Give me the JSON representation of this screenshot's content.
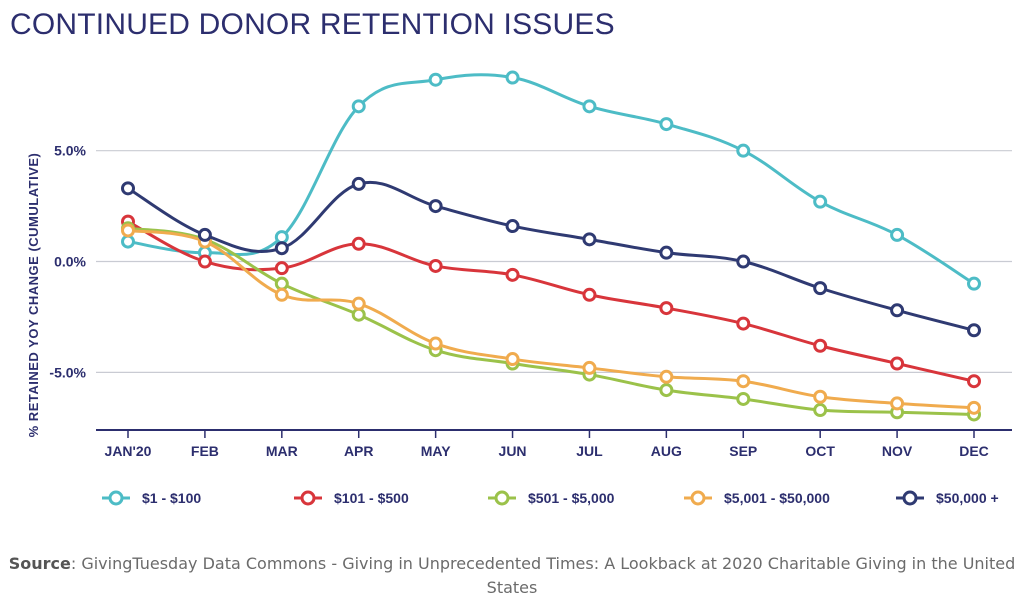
{
  "title": "CONTINUED DONOR RETENTION ISSUES",
  "source": {
    "label": "Source",
    "text": ": GivingTuesday Data Commons - Giving in Unprecedented Times: A Lookback at 2020 Charitable Giving in the United States"
  },
  "chart_data": {
    "type": "line",
    "title": "CONTINUED DONOR RETENTION ISSUES",
    "ylabel": "% RETAINED YOY CHANGE (CUMULATIVE)",
    "xlabel": "",
    "categories": [
      "JAN'20",
      "FEB",
      "MAR",
      "APR",
      "MAY",
      "JUN",
      "JUL",
      "AUG",
      "SEP",
      "OCT",
      "NOV",
      "DEC"
    ],
    "yticks": [
      5.0,
      0.0,
      -5.0
    ],
    "ytick_labels": [
      "5.0%",
      "0.0%",
      "-5.0%"
    ],
    "ylim": [
      -7.6,
      9.0
    ],
    "grid": "horizontal",
    "legend_position": "bottom",
    "series": [
      {
        "name": "$1 - $100",
        "color": "#4dbcc6",
        "values": [
          0.9,
          0.4,
          1.1,
          7.0,
          8.2,
          8.3,
          7.0,
          6.2,
          5.0,
          2.7,
          1.2,
          -1.0
        ]
      },
      {
        "name": "$101 - $500",
        "color": "#d8353b",
        "values": [
          1.8,
          0.0,
          -0.3,
          0.8,
          -0.2,
          -0.6,
          -1.5,
          -2.1,
          -2.8,
          -3.8,
          -4.6,
          -5.4
        ]
      },
      {
        "name": "$501 - $5,000",
        "color": "#9bc24a",
        "values": [
          1.5,
          1.0,
          -1.0,
          -2.4,
          -4.0,
          -4.6,
          -5.1,
          -5.8,
          -6.2,
          -6.7,
          -6.8,
          -6.9
        ]
      },
      {
        "name": "$5,001 - $50,000",
        "color": "#f0ab4e",
        "values": [
          1.4,
          0.9,
          -1.5,
          -1.9,
          -3.7,
          -4.4,
          -4.8,
          -5.2,
          -5.4,
          -6.1,
          -6.4,
          -6.6
        ]
      },
      {
        "name": "$50,000 +",
        "color": "#2f3a72",
        "values": [
          3.3,
          1.2,
          0.6,
          3.5,
          2.5,
          1.6,
          1.0,
          0.4,
          0.0,
          -1.2,
          -2.2,
          -3.1
        ]
      }
    ]
  }
}
